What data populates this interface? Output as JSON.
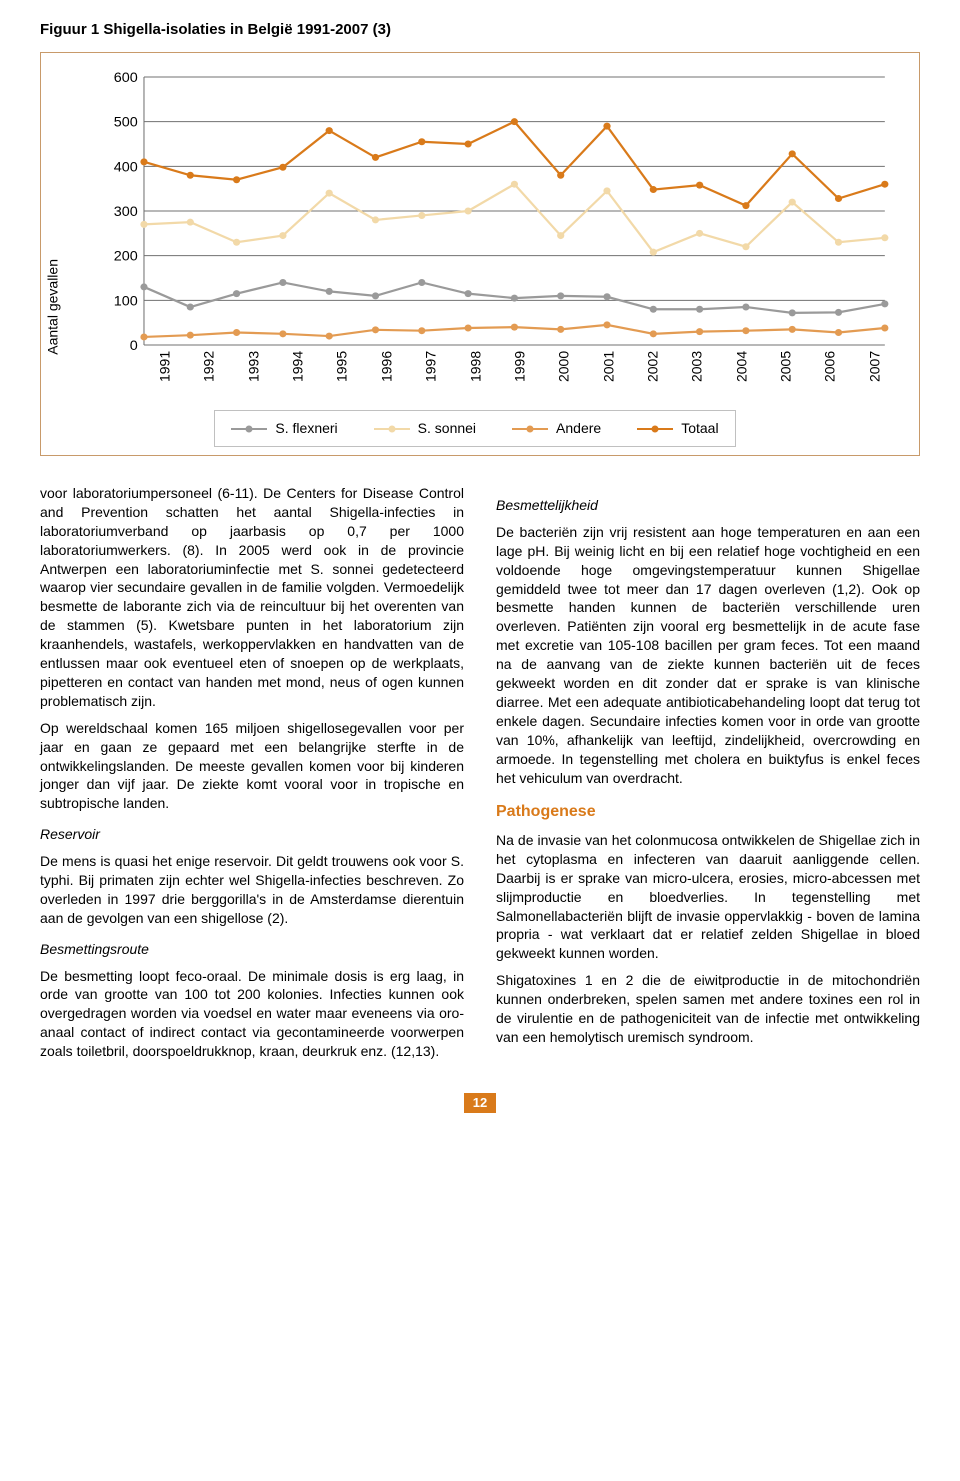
{
  "figure": {
    "title": "Figuur 1 Shigella-isolaties in België 1991-2007 (3)",
    "y_axis_label": "Aantal gevallen",
    "type": "line",
    "years": [
      "1991",
      "1992",
      "1993",
      "1994",
      "1995",
      "1996",
      "1997",
      "1998",
      "1999",
      "2000",
      "2001",
      "2002",
      "2003",
      "2004",
      "2005",
      "2006",
      "2007"
    ],
    "y_min": 0,
    "y_max": 600,
    "y_step": 100,
    "series": {
      "flexneri": {
        "label": "S. flexneri",
        "color": "#9a9a9a",
        "values": [
          130,
          85,
          115,
          140,
          120,
          110,
          140,
          115,
          105,
          110,
          108,
          80,
          80,
          85,
          72,
          73,
          92
        ]
      },
      "sonnei": {
        "label": "S. sonnei",
        "color": "#f2d9a8",
        "values": [
          270,
          275,
          230,
          245,
          340,
          280,
          290,
          300,
          360,
          245,
          345,
          208,
          250,
          220,
          320,
          230,
          240
        ]
      },
      "andere": {
        "label": "Andere",
        "color": "#e39b52",
        "values": [
          18,
          22,
          28,
          25,
          20,
          34,
          32,
          38,
          40,
          35,
          45,
          25,
          30,
          32,
          35,
          28,
          38
        ]
      },
      "totaal": {
        "label": "Totaal",
        "color": "#d97a1a",
        "values": [
          410,
          380,
          370,
          398,
          480,
          420,
          455,
          450,
          500,
          380,
          490,
          348,
          358,
          312,
          428,
          328,
          360
        ]
      }
    },
    "grid_color": "#707070",
    "background_color": "#ffffff",
    "line_width": 2.2,
    "marker_radius": 3.5,
    "label_fontsize": 14
  },
  "left_col": {
    "p1": "voor laboratoriumpersoneel (6-11). De Centers for Disease Control and Prevention schatten het aantal Shigella-infecties in laboratoriumverband op jaarbasis op 0,7 per 1000 laboratoriumwerkers. (8). In 2005 werd ook in de provincie Antwerpen een laboratoriuminfectie met S. sonnei gedetecteerd waarop vier secundaire gevallen in de familie volgden. Vermoedelijk besmette de laborante zich via de reincultuur bij het overenten van de stammen (5). Kwetsbare punten in het laboratorium zijn kraanhendels, wastafels, werkoppervlakken en handvatten van de entlussen maar ook eventueel eten of snoepen op de werkplaats, pipetteren en contact van handen met mond, neus of ogen kunnen problematisch zijn.",
    "p2": "Op wereldschaal komen 165 miljoen shigellosegevallen voor per jaar en gaan ze gepaard met een belangrijke sterfte in de ontwikkelingslanden. De meeste gevallen komen voor bij kinderen jonger dan vijf jaar. De ziekte komt vooral voor in tropische en subtropische landen.",
    "h_reservoir": "Reservoir",
    "p3": "De mens is quasi het enige reservoir. Dit geldt trouwens ook voor S. typhi. Bij primaten zijn echter wel Shigella-infecties beschreven. Zo overleden in 1997 drie berggorilla's in de Amsterdamse dierentuin aan de gevolgen van een shigellose (2).",
    "h_besmetting": "Besmettingsroute",
    "p4": "De besmetting loopt feco-oraal. De minimale dosis is erg laag, in orde van grootte van 100 tot 200 kolonies. Infecties kunnen ook overgedragen worden via voedsel en water maar eveneens via oro-anaal contact of indirect contact via gecontamineerde voorwerpen zoals toiletbril, doorspoeldrukknop, kraan, deurkruk enz. (12,13)."
  },
  "right_col": {
    "h_besmet": "Besmettelijkheid",
    "p1": "De bacteriën zijn vrij resistent aan hoge temperaturen en aan een lage pH. Bij weinig licht en bij een relatief hoge vochtigheid en een voldoende hoge omgevingstemperatuur kunnen Shigellae gemiddeld twee tot meer dan 17 dagen overleven (1,2). Ook op besmette handen kunnen de bacteriën verschillende uren overleven. Patiënten zijn vooral erg besmettelijk in de acute fase met excretie van 105-108 bacillen per gram feces. Tot een maand na de aanvang van de ziekte kunnen bacteriën uit de feces gekweekt worden en dit zonder dat er sprake is van klinische diarree. Met een adequate antibioticabehandeling loopt dat terug tot enkele dagen. Secundaire infecties komen voor in orde van grootte van 10%, afhankelijk van leeftijd, zindelijkheid, overcrowding en armoede. In tegenstelling met cholera en buiktyfus is enkel feces het vehiculum van overdracht.",
    "h_patho": "Pathogenese",
    "p2": "Na de invasie van het colonmucosa ontwikkelen de Shigellae zich in het cytoplasma en infecteren van daaruit aanliggende cellen. Daarbij is er sprake van micro-ulcera, erosies, micro-abcessen met slijmproductie en bloedverlies. In tegenstelling met Salmonellabacteriën blijft de invasie oppervlakkig - boven de lamina propria - wat verklaart dat er relatief zelden Shigellae in bloed gekweekt kunnen worden.",
    "p3": "Shigatoxines 1 en 2 die de eiwitproductie in de mitochondriën kunnen onderbreken, spelen samen met andere toxines een rol in de virulentie en de pathogeniciteit van de infectie met ontwikkeling van een hemolytisch uremisch syndroom."
  },
  "page_number": "12"
}
